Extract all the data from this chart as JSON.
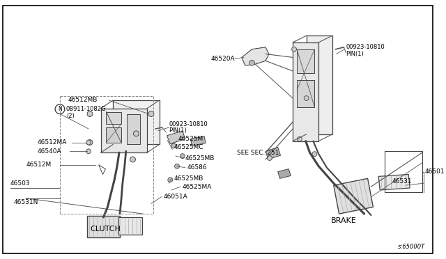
{
  "bg_color": "#ffffff",
  "border_color": "#000000",
  "line_color": "#333333",
  "part_color": "#888888",
  "text_color": "#000000",
  "title_bottom_left": "CLUTCH",
  "title_bottom_right": "BRAKE",
  "part_number_bottom_right": "s:65000T",
  "fig_width": 6.4,
  "fig_height": 3.72
}
